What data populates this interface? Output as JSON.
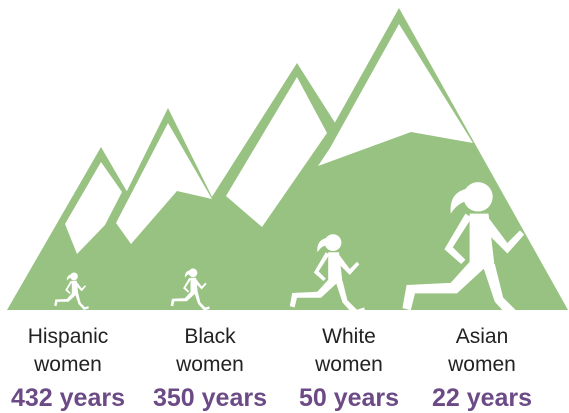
{
  "colors": {
    "mountain": "#98c281",
    "runner": "#ffffff",
    "years_text": "#6b4a86",
    "label_text": "#222222"
  },
  "groups": [
    {
      "line1": "Hispanic",
      "line2": "women",
      "years": "432 years"
    },
    {
      "line1": "Black",
      "line2": "women",
      "years": "350 years"
    },
    {
      "line1": "White",
      "line2": "women",
      "years": "50 years"
    },
    {
      "line1": "Asian",
      "line2": "women",
      "years": "22 years"
    }
  ],
  "icons": [
    "runner-icon",
    "runner-icon",
    "runner-icon",
    "runner-icon"
  ]
}
